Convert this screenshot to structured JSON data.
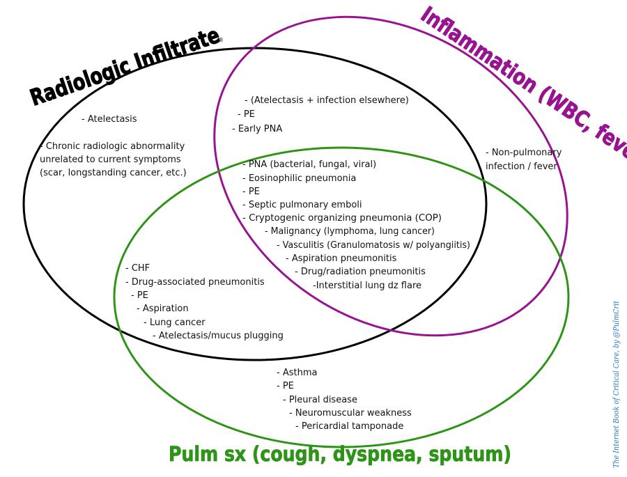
{
  "colors": {
    "radiologic": "#000000",
    "inflammation": "#98138f",
    "pulm": "#2e9418",
    "credit": "#2b7bc8",
    "text": "#111111"
  },
  "titles": {
    "radiologic": "Radiologic Infiltrate",
    "radiologic_mark": "®",
    "inflammation": "Inflammation (WBC, fever)",
    "pulm": "Pulm sx (cough, dyspnea, sputum)"
  },
  "regions": {
    "radiologic_only": [
      "- Atelectasis",
      "- Chronic radiologic abnormality",
      "unrelated to current symptoms",
      "(scar, longstanding cancer, etc.)"
    ],
    "radiologic_inflammation": [
      "- (Atelectasis + infection elsewhere)",
      "- PE",
      "- Early PNA"
    ],
    "inflammation_only": [
      "- Non-pulmonary",
      "infection / fever"
    ],
    "all_three": [
      "- PNA (bacterial, fungal, viral)",
      "- Eosinophilic pneumonia",
      "- PE",
      "- Septic pulmonary emboli",
      "- Cryptogenic organizing pneumonia (COP)",
      "- Malignancy (lymphoma, lung cancer)",
      "- Vasculitis (Granulomatosis w/ polyangiitis)",
      "- Aspiration pneumonitis",
      "- Drug/radiation pneumonitis",
      "-Interstitial lung dz flare"
    ],
    "radiologic_pulm": [
      "- CHF",
      "- Drug-associated pneumonitis",
      "- PE",
      "- Aspiration",
      "- Lung cancer",
      "- Atelectasis/mucus plugging"
    ],
    "pulm_only": [
      "- Asthma",
      "- PE",
      "- Pleural disease",
      "- Neuromuscular weakness",
      "- Pericardial tamponade"
    ]
  },
  "credit": "The Internet Book of Critical Care, by @PulmCrit"
}
